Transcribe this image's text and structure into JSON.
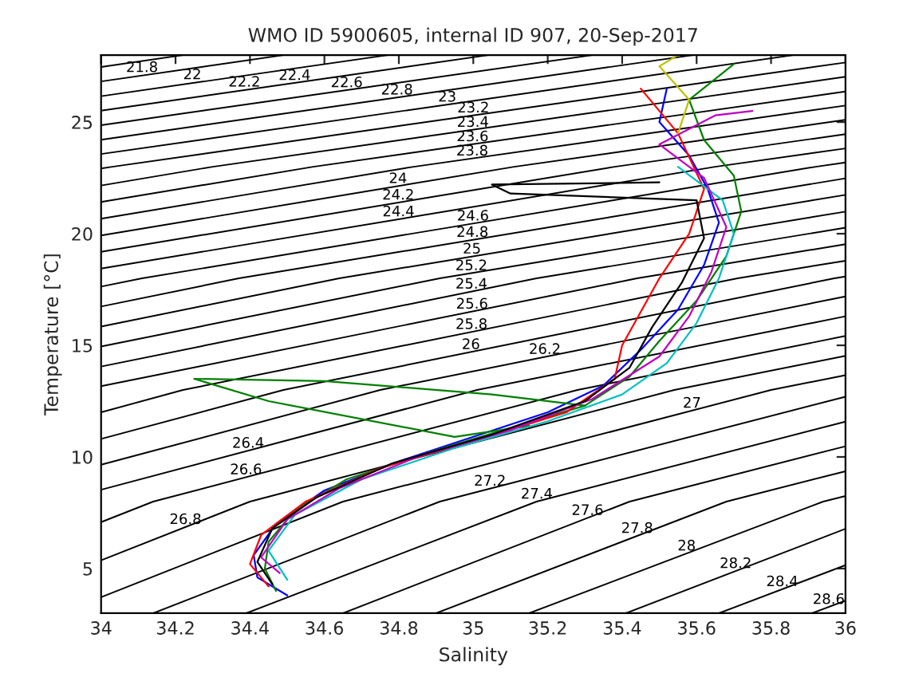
{
  "chart_data": {
    "type": "line",
    "title": "WMO ID 5900605, internal ID 907, 20-Sep-2017",
    "xlabel": "Salinity",
    "ylabel": "Temperature [°C]",
    "xlim": [
      34,
      36
    ],
    "ylim": [
      3,
      28
    ],
    "xticks": [
      34,
      34.2,
      34.4,
      34.6,
      34.8,
      35,
      35.2,
      35.4,
      35.6,
      35.8,
      36
    ],
    "yticks": [
      5,
      10,
      15,
      20,
      25
    ],
    "grid": false,
    "legend": false,
    "line_style": "solid",
    "marker": "none",
    "series": [
      {
        "name": "21.8",
        "color": "#000000",
        "x": [
          34,
          34.22
        ],
        "values": [
          27.47,
          28
        ]
      },
      {
        "name": "22",
        "color": "#000000",
        "x": [
          34,
          34.49
        ],
        "values": [
          26.82,
          28
        ]
      },
      {
        "name": "22.2",
        "color": "#000000",
        "x": [
          34,
          34.77
        ],
        "values": [
          26.16,
          28
        ]
      },
      {
        "name": "22.4",
        "color": "#000000",
        "x": [
          34,
          35.04
        ],
        "values": [
          25.51,
          28
        ]
      },
      {
        "name": "22.6",
        "color": "#000000",
        "x": [
          34,
          35.32
        ],
        "values": [
          24.86,
          28
        ]
      },
      {
        "name": "22.8",
        "color": "#000000",
        "x": [
          34,
          35.59
        ],
        "values": [
          24.21,
          28
        ]
      },
      {
        "name": "23",
        "color": "#000000",
        "x": [
          34,
          35.86
        ],
        "values": [
          23.57,
          28
        ]
      },
      {
        "name": "23.2",
        "color": "#000000",
        "x": [
          34,
          34.03,
          36
        ],
        "values": [
          22.92,
          23,
          27.67
        ]
      },
      {
        "name": "23.4",
        "color": "#000000",
        "x": [
          34,
          34.3,
          36
        ],
        "values": [
          22.16,
          23,
          27.03
        ]
      },
      {
        "name": "23.6",
        "color": "#000000",
        "x": [
          34,
          34.57,
          36
        ],
        "values": [
          21.42,
          23,
          26.37
        ]
      },
      {
        "name": "23.8",
        "color": "#000000",
        "x": [
          34,
          34.84,
          36
        ],
        "values": [
          20.67,
          23,
          25.74
        ]
      },
      {
        "name": "24",
        "color": "#000000",
        "x": [
          34,
          35.11,
          36
        ],
        "values": [
          19.92,
          23,
          25.1
        ]
      },
      {
        "name": "24.2",
        "color": "#000000",
        "x": [
          34,
          35.38,
          36
        ],
        "values": [
          19.19,
          23,
          24.46
        ]
      },
      {
        "name": "24.4",
        "color": "#000000",
        "x": [
          34,
          35.65,
          36
        ],
        "values": [
          18.44,
          23,
          23.82
        ]
      },
      {
        "name": "24.6",
        "color": "#000000",
        "x": [
          34,
          34.11,
          35.92,
          36
        ],
        "values": [
          17.63,
          18,
          23,
          23.19
        ]
      },
      {
        "name": "24.8",
        "color": "#000000",
        "x": [
          34,
          34.37,
          36
        ],
        "values": [
          16.74,
          18,
          22.48
        ]
      },
      {
        "name": "25",
        "color": "#000000",
        "x": [
          34,
          34.64,
          36
        ],
        "values": [
          15.84,
          18,
          21.74
        ]
      },
      {
        "name": "25.2",
        "color": "#000000",
        "x": [
          34,
          34.91,
          36
        ],
        "values": [
          14.95,
          18,
          20.99
        ]
      },
      {
        "name": "25.4",
        "color": "#000000",
        "x": [
          34,
          35.17,
          36
        ],
        "values": [
          14.05,
          18,
          20.27
        ]
      },
      {
        "name": "25.6",
        "color": "#000000",
        "x": [
          34,
          35.44,
          36
        ],
        "values": [
          13.17,
          18,
          19.53
        ]
      },
      {
        "name": "25.8",
        "color": "#000000",
        "x": [
          34,
          34.22,
          35.71,
          36
        ],
        "values": [
          12.0,
          13,
          18,
          18.79
        ]
      },
      {
        "name": "26",
        "color": "#000000",
        "x": [
          34,
          34.49,
          35.97,
          36
        ],
        "values": [
          10.81,
          13,
          18,
          18.08
        ]
      },
      {
        "name": "26.2",
        "color": "#000000",
        "x": [
          34,
          34.75,
          36
        ],
        "values": [
          9.65,
          13,
          17.19
        ]
      },
      {
        "name": "26.4",
        "color": "#000000",
        "x": [
          34,
          35.01,
          36
        ],
        "values": [
          8.53,
          13,
          16.3
        ]
      },
      {
        "name": "26.6",
        "color": "#000000",
        "x": [
          34,
          34.14,
          35.28,
          36
        ],
        "values": [
          7.08,
          8,
          13,
          15.42
        ]
      },
      {
        "name": "26.8",
        "color": "#000000",
        "x": [
          34,
          34.4,
          35.54,
          36
        ],
        "values": [
          5.37,
          8,
          13,
          14.53
        ]
      },
      {
        "name": "27",
        "color": "#000000",
        "x": [
          34,
          34.65,
          35.8,
          36
        ],
        "values": [
          3.72,
          8,
          13,
          13.66
        ]
      },
      {
        "name": "27.2",
        "color": "#000000",
        "x": [
          34.14,
          34.91,
          36
        ],
        "values": [
          3,
          8,
          12.7
        ]
      },
      {
        "name": "27.4",
        "color": "#000000",
        "x": [
          34.39,
          35.17,
          36
        ],
        "values": [
          3,
          8,
          11.58
        ]
      },
      {
        "name": "27.6",
        "color": "#000000",
        "x": [
          34.65,
          35.42,
          36
        ],
        "values": [
          3,
          8,
          10.48
        ]
      },
      {
        "name": "27.8",
        "color": "#000000",
        "x": [
          34.9,
          35.68,
          36
        ],
        "values": [
          3,
          8,
          9.36
        ]
      },
      {
        "name": "28",
        "color": "#000000",
        "x": [
          35.15,
          35.94,
          36
        ],
        "values": [
          3,
          8,
          8.25
        ]
      },
      {
        "name": "28.2",
        "color": "#000000",
        "x": [
          35.41,
          36
        ],
        "values": [
          3,
          6.78
        ]
      },
      {
        "name": "28.4",
        "color": "#000000",
        "x": [
          35.66,
          36
        ],
        "values": [
          3,
          5.15
        ]
      },
      {
        "name": "28.6",
        "color": "#000000",
        "x": [
          35.91,
          36
        ],
        "values": [
          3,
          3.56
        ]
      },
      {
        "color": "#0000ff",
        "x": [
          34.5,
          34.42,
          34.41,
          34.47,
          34.6,
          34.8,
          35.0,
          35.2,
          35.35,
          35.45,
          35.55,
          35.62,
          35.66,
          35.63,
          35.58,
          35.5,
          35.52
        ],
        "values": [
          3.8,
          4.6,
          5.6,
          7.0,
          8.5,
          9.8,
          10.9,
          12.0,
          13.2,
          14.8,
          16.6,
          18.6,
          20.5,
          22.0,
          23.5,
          25.0,
          26.5
        ]
      },
      {
        "color": "#008000",
        "x": [
          34.47,
          34.44,
          34.45,
          34.52,
          34.66,
          34.9,
          35.1,
          35.3,
          35.42,
          35.5,
          35.6,
          35.68,
          35.72,
          35.7,
          35.62,
          35.58,
          35.7
        ],
        "values": [
          4.0,
          5.0,
          6.2,
          7.6,
          9.0,
          10.3,
          11.3,
          12.3,
          13.6,
          15.2,
          17.0,
          19.0,
          21.0,
          22.6,
          24.2,
          26.0,
          27.6
        ]
      },
      {
        "color": "#008000",
        "x": [
          35.3,
          35.05,
          34.6,
          34.25,
          34.45,
          34.95,
          35.15
        ],
        "values": [
          12.3,
          12.8,
          13.4,
          13.5,
          12.5,
          10.9,
          11.4
        ]
      },
      {
        "color": "#ff0000",
        "x": [
          34.45,
          34.4,
          34.43,
          34.55,
          34.75,
          35.0,
          35.25,
          35.38,
          35.4,
          35.45,
          35.5,
          35.58,
          35.62,
          35.55,
          35.45
        ],
        "values": [
          4.2,
          5.2,
          6.5,
          8.0,
          9.5,
          10.7,
          12.0,
          13.5,
          15.0,
          16.5,
          18.0,
          20.0,
          22.0,
          24.5,
          26.5
        ]
      },
      {
        "color": "#00bfbf",
        "x": [
          34.5,
          34.45,
          34.52,
          34.7,
          34.95,
          35.2,
          35.4,
          35.52,
          35.6,
          35.66,
          35.7,
          35.67,
          35.55
        ],
        "values": [
          4.5,
          5.8,
          7.4,
          9.0,
          10.4,
          11.6,
          12.8,
          14.2,
          16.0,
          18.0,
          20.0,
          21.5,
          23.0
        ]
      },
      {
        "color": "#bf00bf",
        "x": [
          34.48,
          34.43,
          34.5,
          34.64,
          34.85,
          35.1,
          35.32,
          35.5,
          35.58,
          35.64,
          35.68,
          35.62,
          35.5,
          35.65,
          35.75
        ],
        "values": [
          4.8,
          5.5,
          7.2,
          8.6,
          10.0,
          11.2,
          12.6,
          14.5,
          16.3,
          18.3,
          20.3,
          22.5,
          24.0,
          25.3,
          25.5
        ]
      },
      {
        "color": "#000000",
        "x": [
          34.46,
          34.42,
          34.46,
          34.58,
          34.78,
          35.05,
          35.3,
          35.42,
          35.48,
          35.56,
          35.62,
          35.6,
          35.1,
          35.05,
          35.5
        ],
        "values": [
          4.3,
          5.3,
          6.8,
          8.2,
          9.7,
          11.0,
          12.5,
          14.0,
          15.8,
          17.8,
          19.8,
          21.5,
          21.8,
          22.2,
          22.3
        ]
      },
      {
        "color": "#bfbf00",
        "x": [
          35.55,
          35.58,
          35.5,
          35.55
        ],
        "values": [
          24.5,
          26.0,
          27.5,
          28.0
        ]
      }
    ]
  }
}
